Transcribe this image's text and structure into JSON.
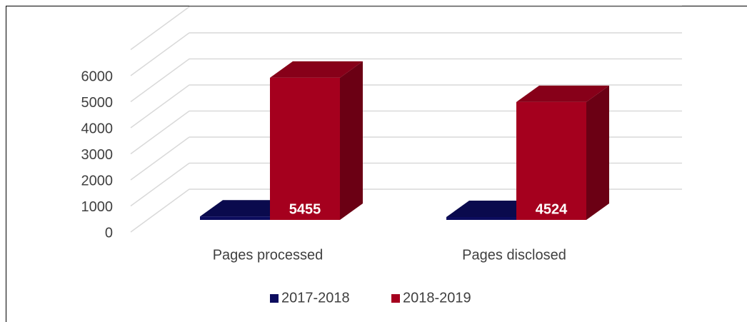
{
  "chart_data": {
    "type": "bar3d",
    "categories": [
      "Pages processed",
      "Pages disclosed"
    ],
    "series": [
      {
        "name": "2017-2018",
        "color": "#0c0c5e",
        "values": [
          131,
          110
        ]
      },
      {
        "name": "2018-2019",
        "color": "#a5001e",
        "values": [
          5455,
          4524
        ]
      }
    ],
    "ylim": [
      0,
      7000
    ],
    "yticks": [
      0,
      1000,
      2000,
      3000,
      4000,
      5000,
      6000
    ],
    "grid": true,
    "legend": "bottom"
  }
}
